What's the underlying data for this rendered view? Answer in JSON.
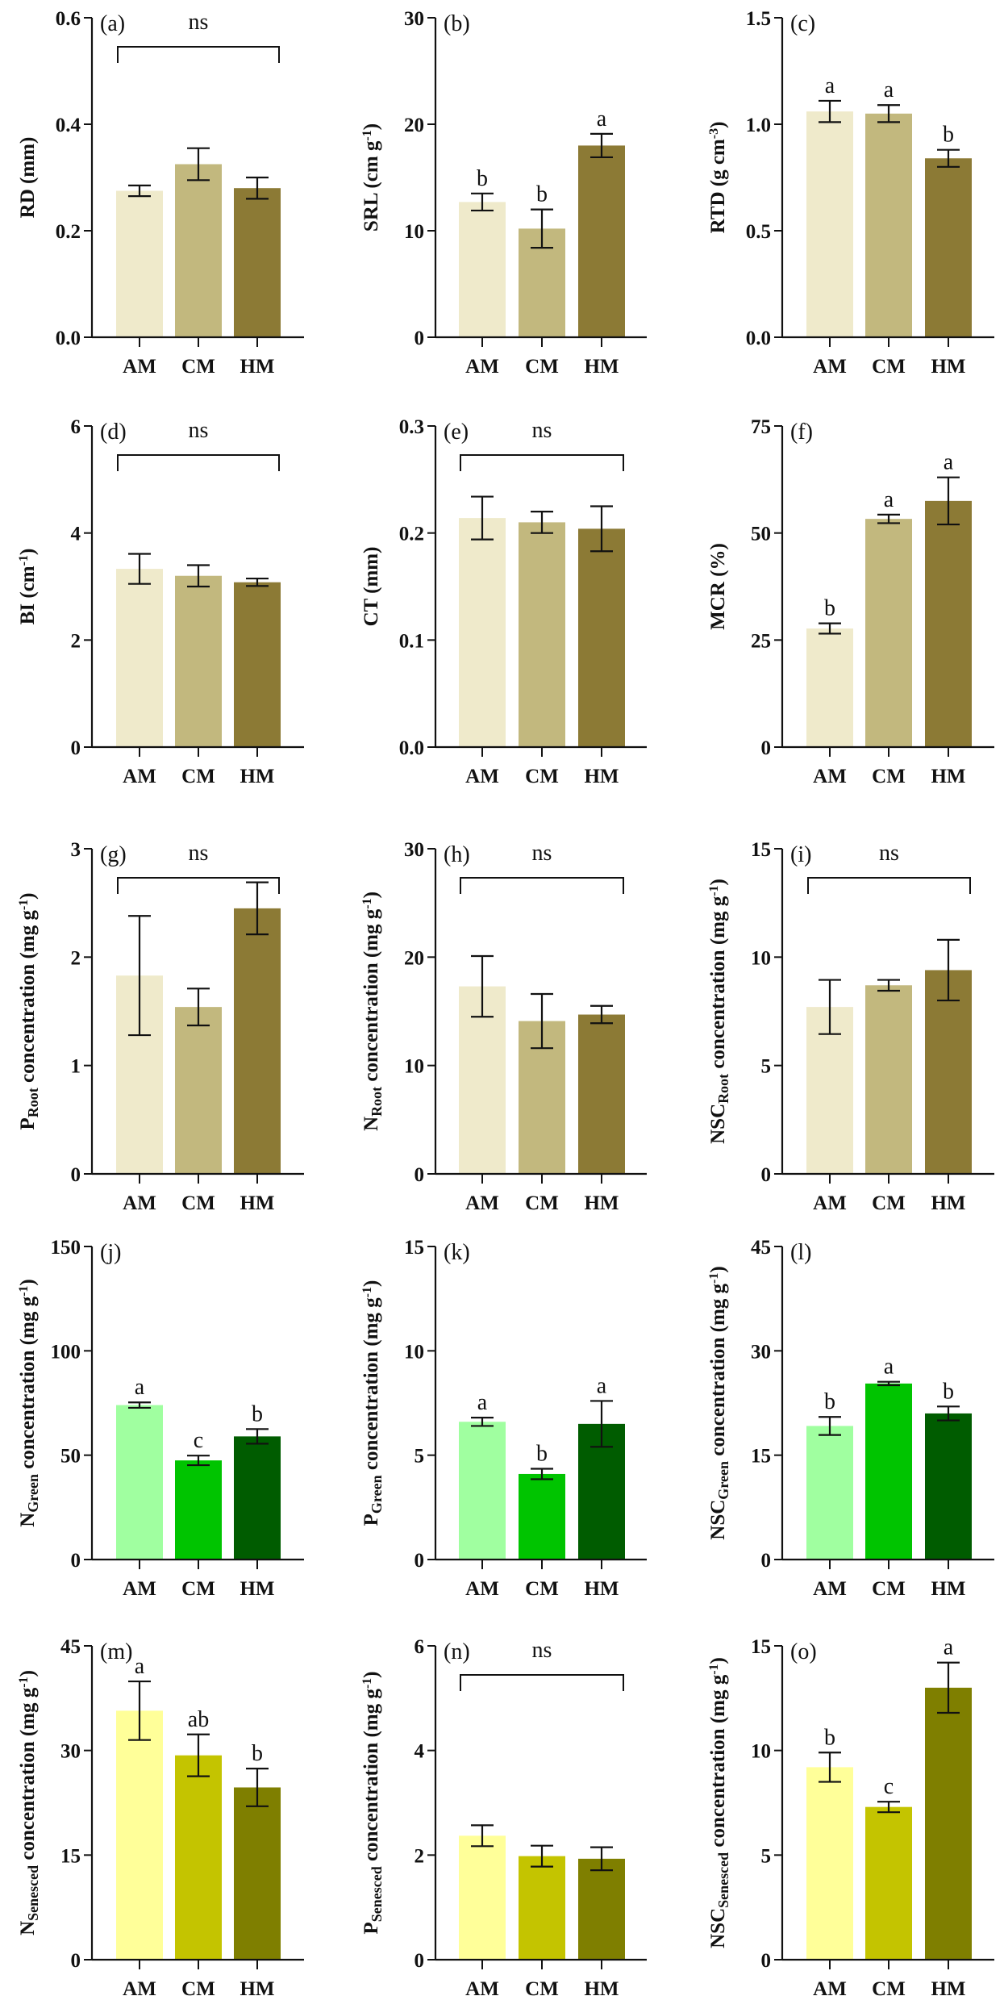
{
  "chart_data": [
    {
      "type": "bar",
      "panel": "(a)",
      "categories": [
        "AM",
        "CM",
        "HM"
      ],
      "values": [
        0.275,
        0.325,
        0.28
      ],
      "errors": [
        0.01,
        0.03,
        0.02
      ],
      "letters": [],
      "ns": "ns",
      "ylim": [
        0,
        0.6
      ],
      "ticks": [
        "0.0",
        "0.2",
        "0.4",
        "0.6"
      ],
      "ylabel": [
        {
          "t": "RD (mm)"
        }
      ],
      "colors": [
        "#EFEACB",
        "#C2B87E",
        "#8C7A35"
      ]
    },
    {
      "type": "bar",
      "panel": "(b)",
      "categories": [
        "AM",
        "CM",
        "HM"
      ],
      "values": [
        12.7,
        10.2,
        18.0
      ],
      "errors": [
        0.8,
        1.8,
        1.1
      ],
      "letters": [
        "b",
        "b",
        "a"
      ],
      "ns": "",
      "ylim": [
        0,
        30
      ],
      "ticks": [
        "0",
        "10",
        "20",
        "30"
      ],
      "ylabel": [
        {
          "t": "SRL (cm g"
        },
        {
          "t": "-1",
          "sup": true
        },
        {
          "t": ")"
        }
      ],
      "colors": [
        "#EFEACB",
        "#C2B87E",
        "#8C7A35"
      ]
    },
    {
      "type": "bar",
      "panel": "(c)",
      "categories": [
        "AM",
        "CM",
        "HM"
      ],
      "values": [
        1.06,
        1.05,
        0.84
      ],
      "errors": [
        0.05,
        0.04,
        0.04
      ],
      "letters": [
        "a",
        "a",
        "b"
      ],
      "ns": "",
      "ylim": [
        0,
        1.5
      ],
      "ticks": [
        "0.0",
        "0.5",
        "1.0",
        "1.5"
      ],
      "ylabel": [
        {
          "t": "RTD (g cm"
        },
        {
          "t": "-3",
          "sup": true
        },
        {
          "t": ")"
        }
      ],
      "colors": [
        "#EFEACB",
        "#C2B87E",
        "#8C7A35"
      ]
    },
    {
      "type": "bar",
      "panel": "(d)",
      "categories": [
        "AM",
        "CM",
        "HM"
      ],
      "values": [
        3.33,
        3.2,
        3.08
      ],
      "errors": [
        0.28,
        0.2,
        0.07
      ],
      "letters": [],
      "ns": "ns",
      "ylim": [
        0,
        6
      ],
      "ticks": [
        "0",
        "2",
        "4",
        "6"
      ],
      "ylabel": [
        {
          "t": "BI (cm"
        },
        {
          "t": "-1",
          "sup": true
        },
        {
          "t": ")"
        }
      ],
      "colors": [
        "#EFEACB",
        "#C2B87E",
        "#8C7A35"
      ]
    },
    {
      "type": "bar",
      "panel": "(e)",
      "categories": [
        "AM",
        "CM",
        "HM"
      ],
      "values": [
        0.214,
        0.21,
        0.204
      ],
      "errors": [
        0.02,
        0.01,
        0.021
      ],
      "letters": [],
      "ns": "ns",
      "ylim": [
        0,
        0.3
      ],
      "ticks": [
        "0.0",
        "0.1",
        "0.2",
        "0.3"
      ],
      "ylabel": [
        {
          "t": "CT (mm)"
        }
      ],
      "colors": [
        "#EFEACB",
        "#C2B87E",
        "#8C7A35"
      ]
    },
    {
      "type": "bar",
      "panel": "(f)",
      "categories": [
        "AM",
        "CM",
        "HM"
      ],
      "values": [
        27.7,
        53.3,
        57.5
      ],
      "errors": [
        1.2,
        1.0,
        5.5
      ],
      "letters": [
        "b",
        "a",
        "a"
      ],
      "ns": "",
      "ylim": [
        0,
        75
      ],
      "ticks": [
        "0",
        "25",
        "50",
        "75"
      ],
      "ylabel": [
        {
          "t": "MCR (%)"
        }
      ],
      "colors": [
        "#EFEACB",
        "#C2B87E",
        "#8C7A35"
      ]
    },
    {
      "type": "bar",
      "panel": "(g)",
      "categories": [
        "AM",
        "CM",
        "HM"
      ],
      "values": [
        1.83,
        1.54,
        2.45
      ],
      "errors": [
        0.55,
        0.17,
        0.24
      ],
      "letters": [],
      "ns": "ns",
      "ylim": [
        0,
        3
      ],
      "ticks": [
        "0",
        "1",
        "2",
        "3"
      ],
      "ylabel": [
        {
          "t": "P"
        },
        {
          "t": "Root",
          "sub": true
        },
        {
          "t": "  concentration  (mg g"
        },
        {
          "t": "-1",
          "sup": true
        },
        {
          "t": ")"
        }
      ],
      "colors": [
        "#EFEACB",
        "#C2B87E",
        "#8C7A35"
      ]
    },
    {
      "type": "bar",
      "panel": "(h)",
      "categories": [
        "AM",
        "CM",
        "HM"
      ],
      "values": [
        17.3,
        14.1,
        14.7
      ],
      "errors": [
        2.8,
        2.5,
        0.8
      ],
      "letters": [],
      "ns": "ns",
      "ylim": [
        0,
        30
      ],
      "ticks": [
        "0",
        "10",
        "20",
        "30"
      ],
      "ylabel": [
        {
          "t": "N"
        },
        {
          "t": "Root",
          "sub": true
        },
        {
          "t": "  concentration (mg g"
        },
        {
          "t": "-1",
          "sup": true
        },
        {
          "t": ")"
        }
      ],
      "colors": [
        "#EFEACB",
        "#C2B87E",
        "#8C7A35"
      ]
    },
    {
      "type": "bar",
      "panel": "(i)",
      "categories": [
        "AM",
        "CM",
        "HM"
      ],
      "values": [
        7.7,
        8.7,
        9.4
      ],
      "errors": [
        1.25,
        0.25,
        1.4
      ],
      "letters": [],
      "ns": "ns",
      "ylim": [
        0,
        15
      ],
      "ticks": [
        "0",
        "5",
        "10",
        "15"
      ],
      "ylabel": [
        {
          "t": "NSC"
        },
        {
          "t": "Root",
          "sub": true
        },
        {
          "t": " concentration (mg g"
        },
        {
          "t": "-1",
          "sup": true
        },
        {
          "t": ")"
        }
      ],
      "colors": [
        "#EFEACB",
        "#C2B87E",
        "#8C7A35"
      ]
    },
    {
      "type": "bar",
      "panel": "(j)",
      "categories": [
        "AM",
        "CM",
        "HM"
      ],
      "values": [
        74,
        47.5,
        59
      ],
      "errors": [
        1.3,
        2.3,
        3.5
      ],
      "letters": [
        "a",
        "c",
        "b"
      ],
      "ns": "",
      "ylim": [
        0,
        150
      ],
      "ticks": [
        "0",
        "50",
        "100",
        "150"
      ],
      "ylabel": [
        {
          "t": "N"
        },
        {
          "t": "Green",
          "sub": true
        },
        {
          "t": " concentration (mg g"
        },
        {
          "t": "-1",
          "sup": true
        },
        {
          "t": ")"
        }
      ],
      "colors": [
        "#A0FFA0",
        "#00C400",
        "#005C00"
      ]
    },
    {
      "type": "bar",
      "panel": "(k)",
      "categories": [
        "AM",
        "CM",
        "HM"
      ],
      "values": [
        6.6,
        4.1,
        6.5
      ],
      "errors": [
        0.2,
        0.25,
        1.1
      ],
      "letters": [
        "a",
        "b",
        "a"
      ],
      "ns": "",
      "ylim": [
        0,
        15
      ],
      "ticks": [
        "0",
        "5",
        "10",
        "15"
      ],
      "ylabel": [
        {
          "t": "P"
        },
        {
          "t": "Green",
          "sub": true
        },
        {
          "t": "  concentration (mg g"
        },
        {
          "t": "-1",
          "sup": true
        },
        {
          "t": ")"
        }
      ],
      "colors": [
        "#A0FFA0",
        "#00C400",
        "#005C00"
      ]
    },
    {
      "type": "bar",
      "panel": "(l)",
      "categories": [
        "AM",
        "CM",
        "HM"
      ],
      "values": [
        19.2,
        25.3,
        21
      ],
      "errors": [
        1.3,
        0.25,
        1.0
      ],
      "letters": [
        "b",
        "a",
        "b"
      ],
      "ns": "",
      "ylim": [
        0,
        45
      ],
      "ticks": [
        "0",
        "15",
        "30",
        "45"
      ],
      "ylabel": [
        {
          "t": "NSC"
        },
        {
          "t": "Green",
          "sub": true
        },
        {
          "t": " concentration (mg g"
        },
        {
          "t": "-1",
          "sup": true
        },
        {
          "t": ")"
        }
      ],
      "colors": [
        "#A0FFA0",
        "#00C400",
        "#005C00"
      ]
    },
    {
      "type": "bar",
      "panel": "(m)",
      "categories": [
        "AM",
        "CM",
        "HM"
      ],
      "values": [
        35.7,
        29.3,
        24.7
      ],
      "errors": [
        4.2,
        3.0,
        2.7
      ],
      "letters": [
        "a",
        "ab",
        "b"
      ],
      "ns": "",
      "ylim": [
        0,
        45
      ],
      "ticks": [
        "0",
        "15",
        "30",
        "45"
      ],
      "ylabel": [
        {
          "t": "N"
        },
        {
          "t": "Senesced",
          "sub": true
        },
        {
          "t": "  concentration (mg g"
        },
        {
          "t": "-1",
          "sup": true
        },
        {
          "t": ")"
        }
      ],
      "colors": [
        "#FFFF99",
        "#C4C400",
        "#7F7F00"
      ]
    },
    {
      "type": "bar",
      "panel": "(n)",
      "categories": [
        "AM",
        "CM",
        "HM"
      ],
      "values": [
        2.37,
        1.98,
        1.93
      ],
      "errors": [
        0.2,
        0.2,
        0.22
      ],
      "letters": [],
      "ns": "ns",
      "ylim": [
        0,
        6
      ],
      "ticks": [
        "0",
        "2",
        "4",
        "6"
      ],
      "ylabel": [
        {
          "t": "P"
        },
        {
          "t": "Senesced",
          "sub": true
        },
        {
          "t": "  concentration (mg g"
        },
        {
          "t": "-1",
          "sup": true
        },
        {
          "t": ")"
        }
      ],
      "colors": [
        "#FFFF99",
        "#C4C400",
        "#7F7F00"
      ]
    },
    {
      "type": "bar",
      "panel": "(o)",
      "categories": [
        "AM",
        "CM",
        "HM"
      ],
      "values": [
        9.2,
        7.3,
        13.0
      ],
      "errors": [
        0.7,
        0.25,
        1.2
      ],
      "letters": [
        "b",
        "c",
        "a"
      ],
      "ns": "",
      "ylim": [
        0,
        15
      ],
      "ticks": [
        "0",
        "5",
        "10",
        "15"
      ],
      "ylabel": [
        {
          "t": "NSC"
        },
        {
          "t": "Senesced",
          "sub": true
        },
        {
          "t": " concentration (mg g"
        },
        {
          "t": "-1",
          "sup": true
        },
        {
          "t": ")"
        }
      ],
      "colors": [
        "#FFFF99",
        "#C4C400",
        "#7F7F00"
      ]
    }
  ]
}
